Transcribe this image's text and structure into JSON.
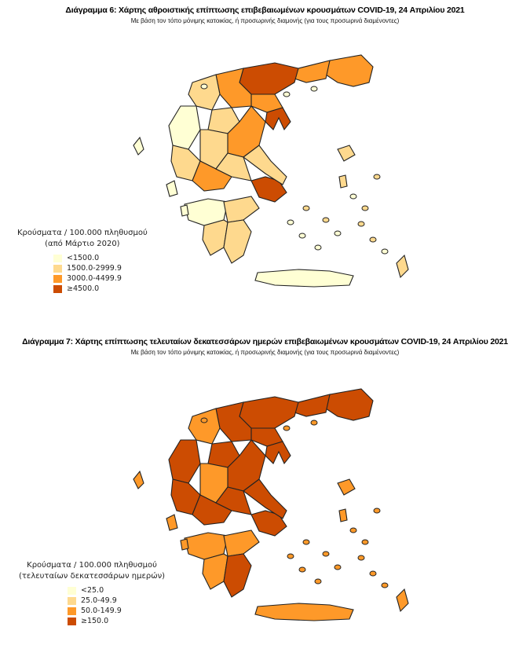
{
  "palette": [
    "#FFFFD4",
    "#FED98E",
    "#FE9929",
    "#CC4C02"
  ],
  "chart_data": [
    {
      "type": "choropleth-map",
      "title": "Διάγραμμα 6: Χάρτης αθροιστικής επίπτωσης επιβεβαιωμένων κρουσμάτων COVID-19, 24 Απριλίου 2021",
      "subtitle": "Με βάση τον τόπο μόνιμης κατοικίας, ή προσωρινής διαμονής (για τους προσωρινά διαμένοντες)",
      "legend_title": "Κρούσματα / 100.000 πληθυσμού",
      "legend_subtitle": "(από Μάρτιο 2020)",
      "legend_position": "bottom-left",
      "classes": [
        "<1500.0",
        "1500.0-2999.9",
        "3000.0-4499.9",
        "≥4500.0"
      ],
      "region_classes": [
        2,
        2,
        3,
        2,
        3,
        2,
        1,
        0,
        1,
        2,
        1,
        1,
        2,
        3,
        1,
        1,
        0,
        1,
        1,
        1,
        0,
        0,
        0,
        1,
        1,
        1,
        0,
        1
      ]
    },
    {
      "type": "choropleth-map",
      "title": "Διάγραμμα 7: Χάρτης επίπτωσης τελευταίων δεκατεσσάρων ημερών επιβεβαιωμένων κρουσμάτων COVID-19, 24 Απριλίου 2021",
      "subtitle": "Με βάση τον τόπο μόνιμης κατοικίας, ή προσωρινής διαμονής (για τους προσωρινά διαμένοντες)",
      "legend_title": "Κρούσματα / 100.000 πληθυσμού",
      "legend_subtitle": "(τελευταίων δεκατεσσάρων ημερών)",
      "legend_position": "bottom-left",
      "classes": [
        "<25.0",
        "25.0-49.9",
        "50.0-149.9",
        "≥150.0"
      ],
      "region_classes": [
        3,
        3,
        3,
        3,
        3,
        3,
        2,
        3,
        3,
        3,
        2,
        3,
        3,
        3,
        3,
        3,
        2,
        2,
        2,
        3,
        2,
        2,
        2,
        1,
        2,
        2,
        2,
        2
      ]
    }
  ]
}
